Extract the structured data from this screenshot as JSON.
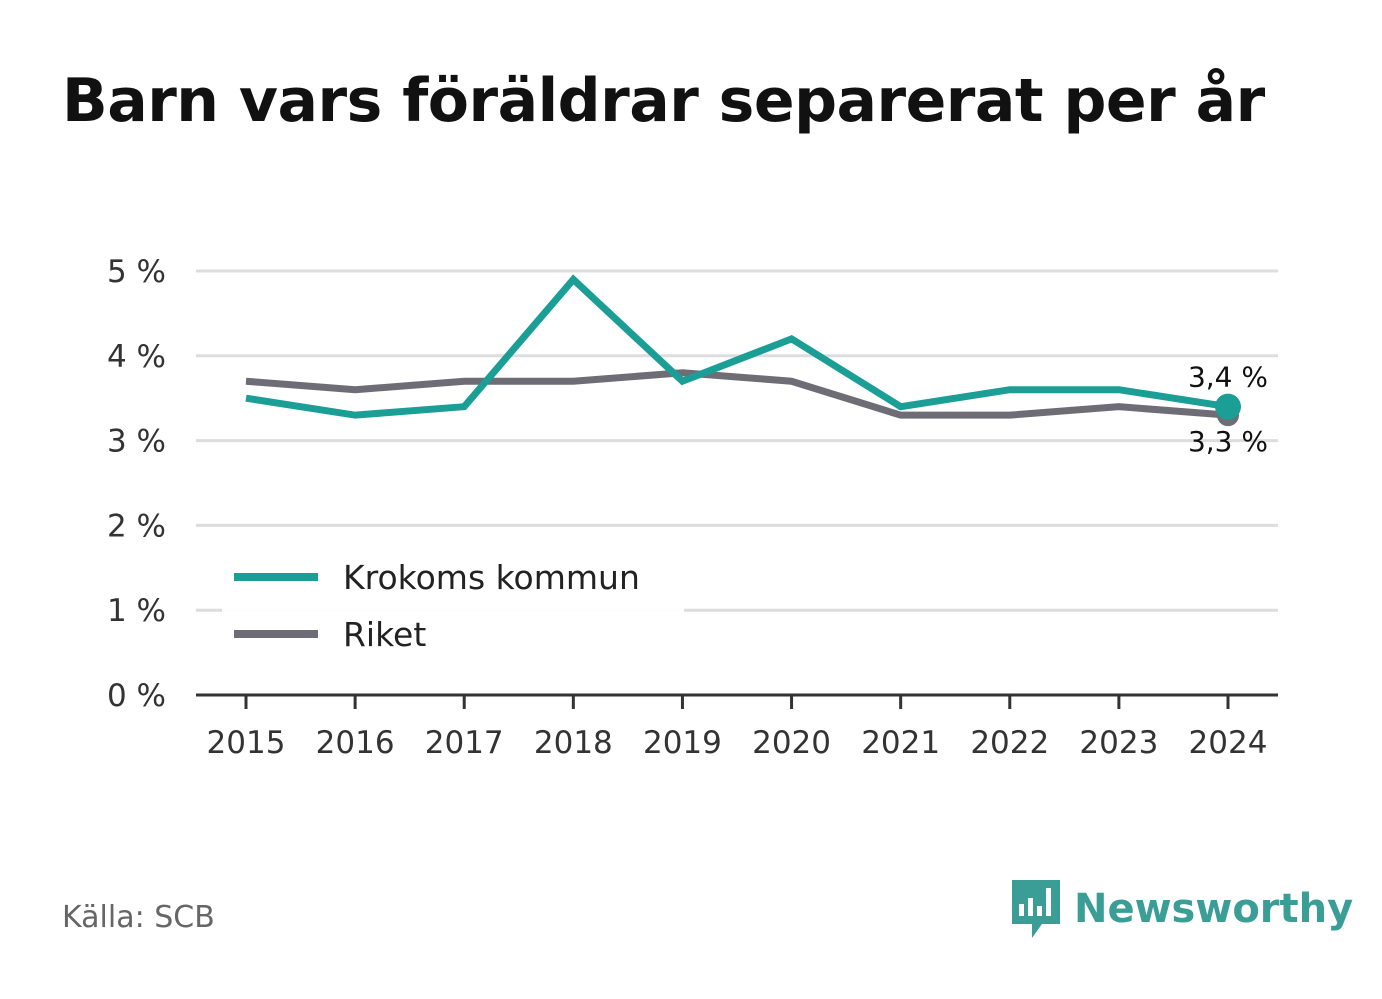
{
  "title": "Barn vars föräldrar separerat per år",
  "source": "Källa: SCB",
  "brand": "Newsworthy",
  "colors": {
    "kommun": "#1a9e96",
    "riket": "#6e6d76",
    "grid": "#dddddd",
    "axis": "#333333"
  },
  "chart_data": {
    "type": "line",
    "title": "Barn vars föräldrar separerat per år",
    "x": [
      "2015",
      "2016",
      "2017",
      "2018",
      "2019",
      "2020",
      "2021",
      "2022",
      "2023",
      "2024"
    ],
    "yticks": [
      "0 %",
      "1 %",
      "2 %",
      "3 %",
      "4 %",
      "5 %"
    ],
    "ylim": [
      0,
      5
    ],
    "unit": "%",
    "grid": true,
    "legend_position": "bottom-left",
    "series": [
      {
        "name": "Krokoms kommun",
        "color": "#1a9e96",
        "values": [
          3.5,
          3.3,
          3.4,
          4.9,
          3.7,
          4.2,
          3.4,
          3.6,
          3.6,
          3.4
        ],
        "end_label": "3,4 %"
      },
      {
        "name": "Riket",
        "color": "#6e6d76",
        "values": [
          3.7,
          3.6,
          3.7,
          3.7,
          3.8,
          3.7,
          3.3,
          3.3,
          3.4,
          3.3
        ],
        "end_label": "3,3 %"
      }
    ]
  }
}
